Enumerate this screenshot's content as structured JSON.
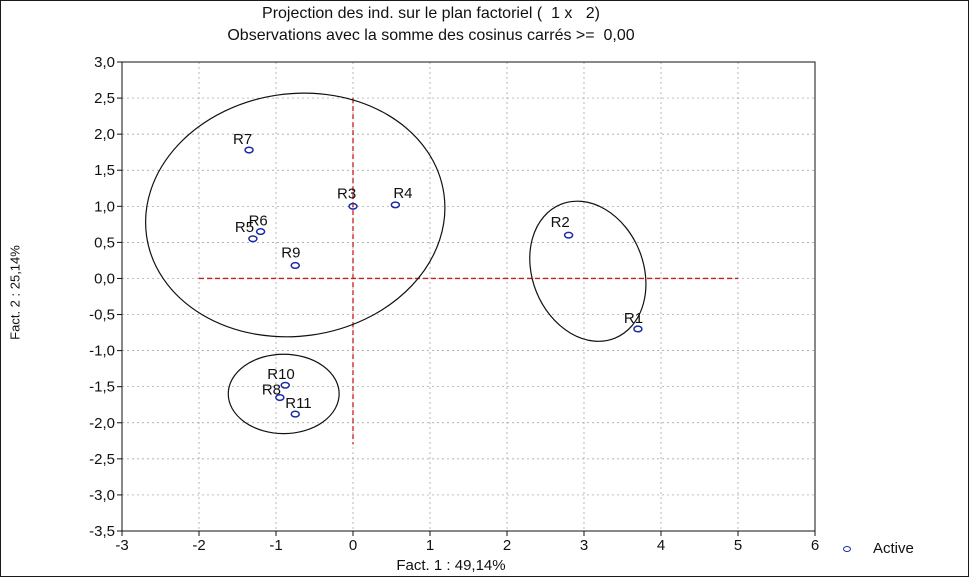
{
  "chart_data": {
    "type": "scatter",
    "title": "Projection des ind. sur le plan factoriel (  1 x   2)",
    "subtitle": "Observations avec la somme des cosinus carrés >=  0,00",
    "xlabel": "Fact. 1 : 49,14%",
    "ylabel": "Fact. 2 : 25,14%",
    "xlim": [
      -3,
      6
    ],
    "ylim": [
      -3.5,
      3
    ],
    "xticks": [
      "-3",
      "-2",
      "-1",
      "0",
      "1",
      "2",
      "3",
      "4",
      "5",
      "6"
    ],
    "yticks": [
      "3,0",
      "2,5",
      "2,0",
      "1,5",
      "1,0",
      "0,5",
      "0,0",
      "-0,5",
      "-1,0",
      "-1,5",
      "-2,0",
      "-2,5",
      "-3,0",
      "-3,5"
    ],
    "grid": true,
    "legend": {
      "position": "bottom-right",
      "entries": [
        "Active"
      ]
    },
    "series": [
      {
        "name": "Active",
        "color": "#1a2aa8",
        "points": [
          {
            "label": "R1",
            "x": 3.7,
            "y": -0.7
          },
          {
            "label": "R2",
            "x": 2.8,
            "y": 0.6
          },
          {
            "label": "R3",
            "x": 0.0,
            "y": 1.0
          },
          {
            "label": "R4",
            "x": 0.55,
            "y": 1.02
          },
          {
            "label": "R5",
            "x": -1.3,
            "y": 0.55
          },
          {
            "label": "R6",
            "x": -1.2,
            "y": 0.65
          },
          {
            "label": "R7",
            "x": -1.35,
            "y": 1.78
          },
          {
            "label": "R8",
            "x": -0.95,
            "y": -1.65
          },
          {
            "label": "R9",
            "x": -0.75,
            "y": 0.18
          },
          {
            "label": "R10",
            "x": -0.88,
            "y": -1.48
          },
          {
            "label": "R11",
            "x": -0.75,
            "y": -1.88
          }
        ]
      }
    ]
  }
}
